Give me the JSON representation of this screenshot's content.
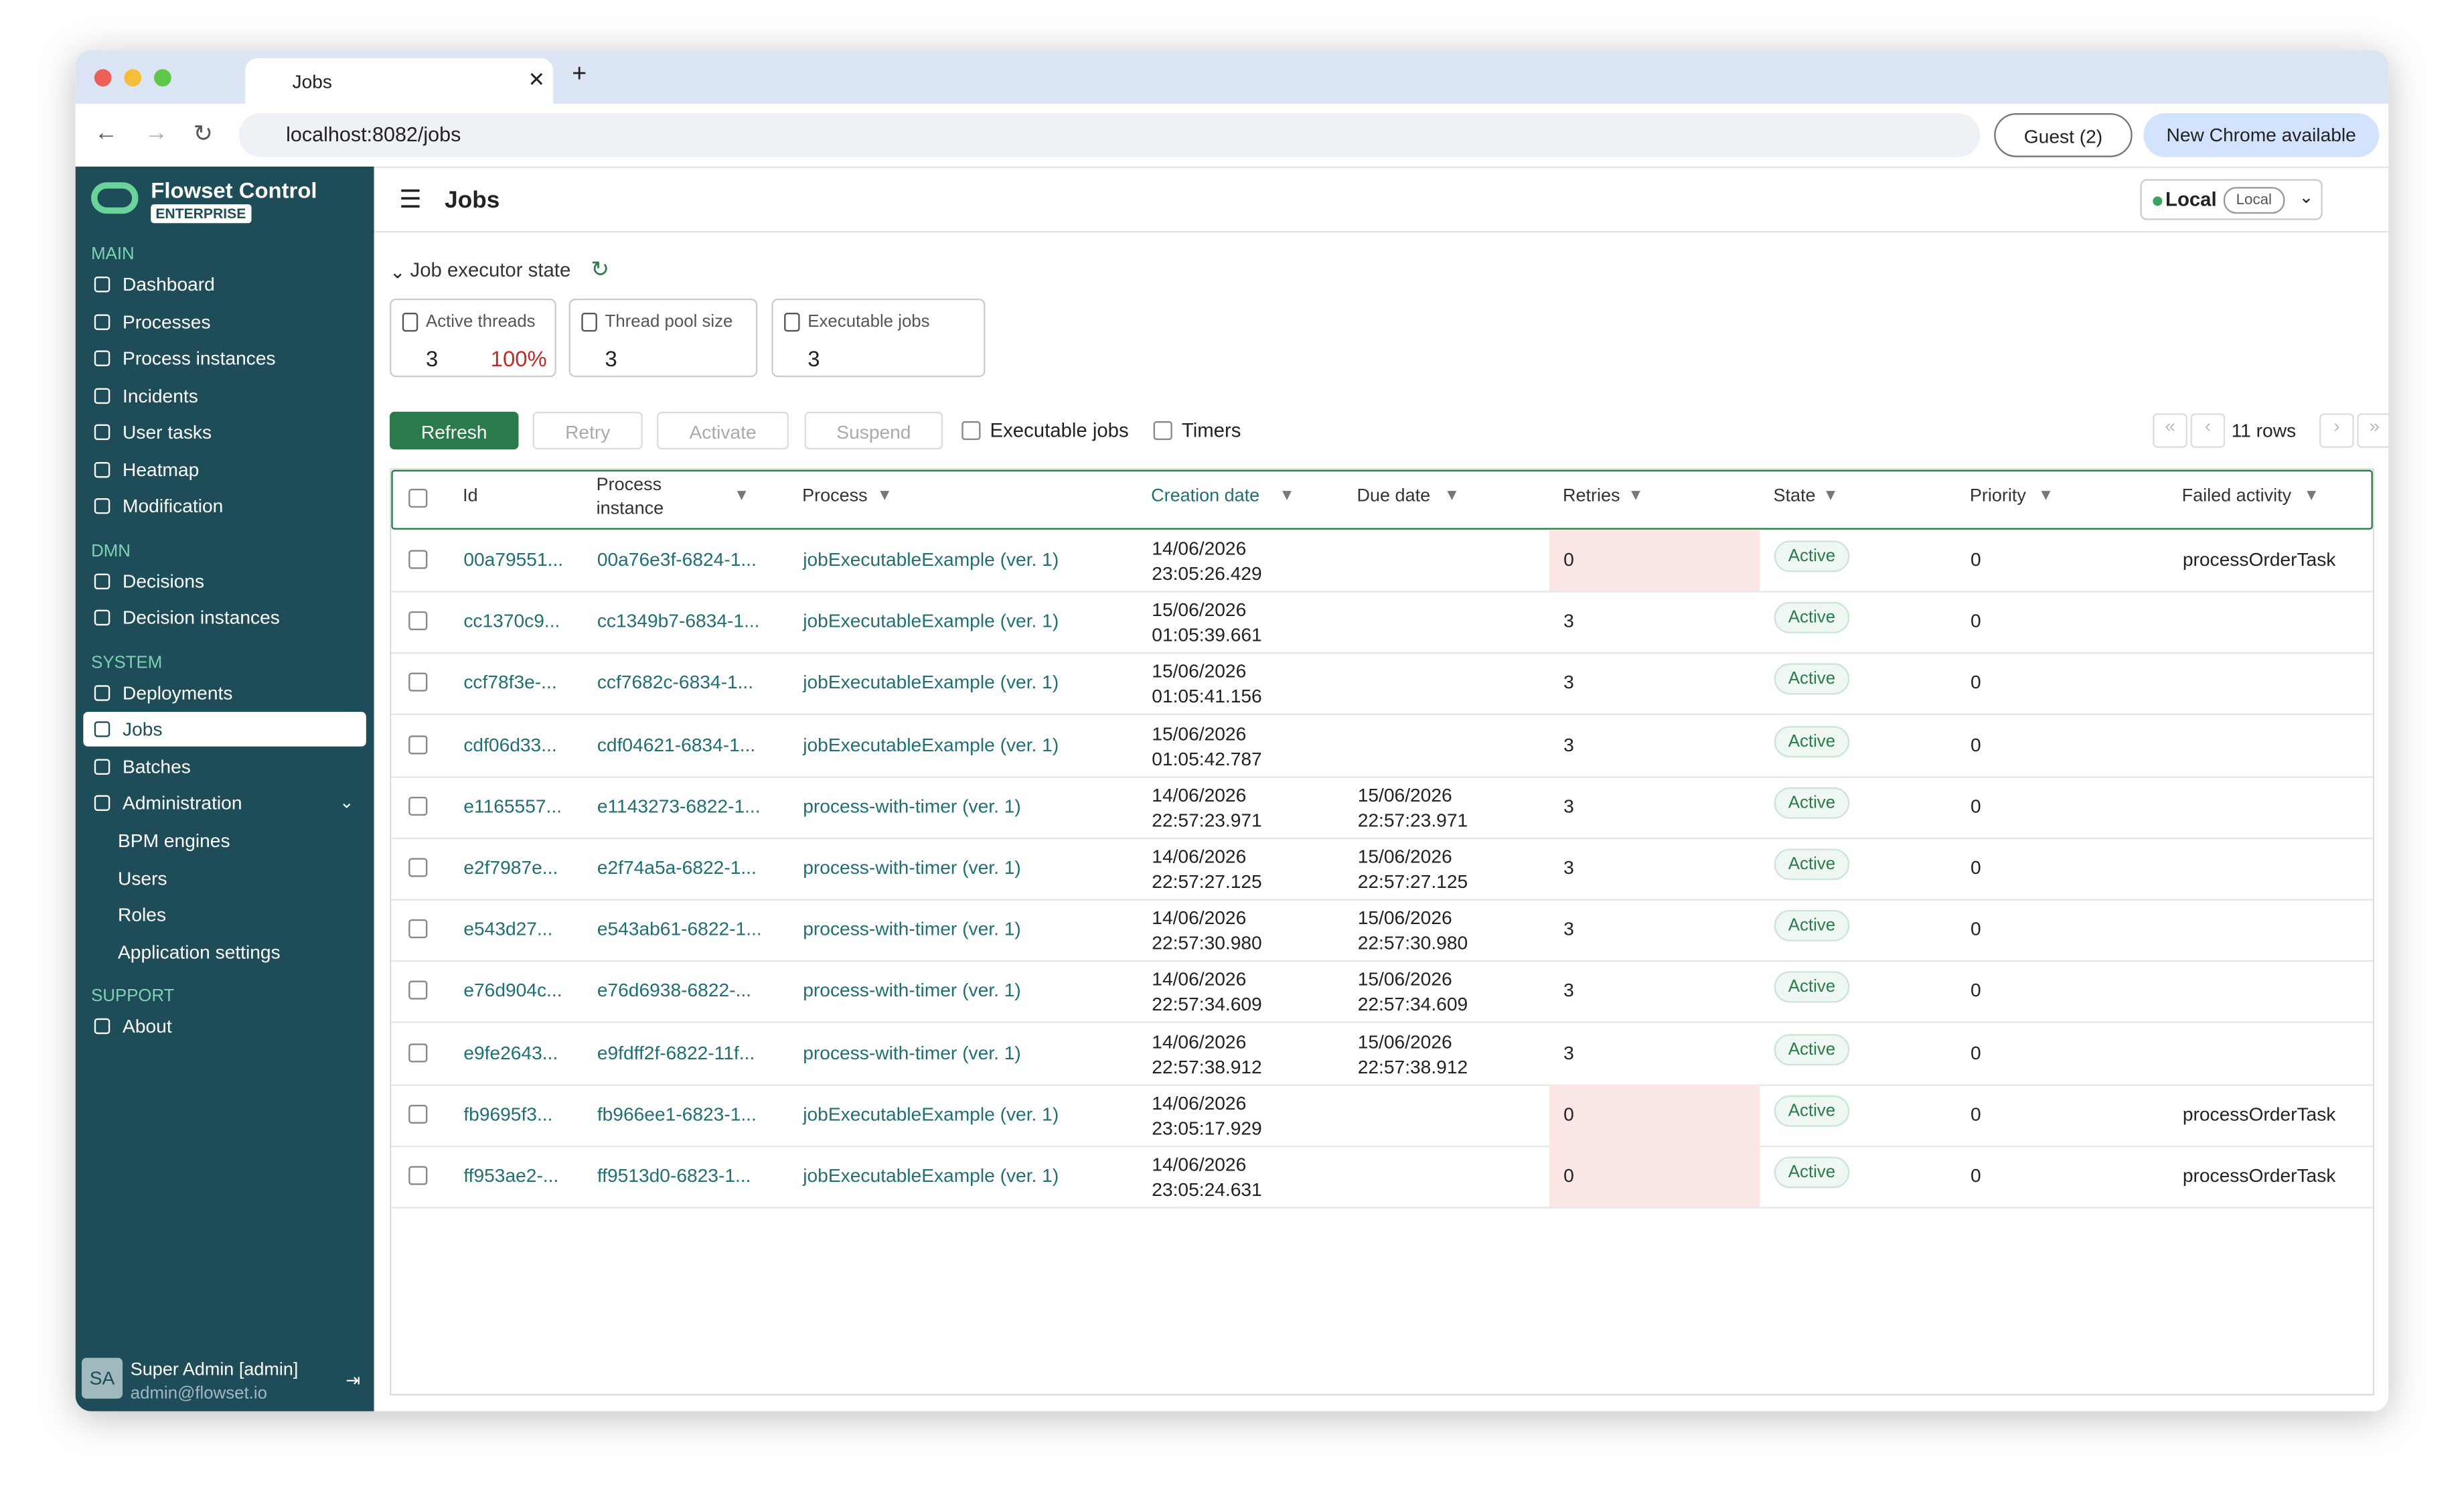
{
  "browser": {
    "tab_title": "Jobs",
    "url": "localhost:8082/jobs",
    "profile": "Guest (2)",
    "update": "New Chrome available"
  },
  "app": {
    "name": "Flowset Control",
    "edition": "ENTERPRISE"
  },
  "sidebar": {
    "sections": [
      {
        "title": "MAIN",
        "items": [
          {
            "label": "Dashboard"
          },
          {
            "label": "Processes"
          },
          {
            "label": "Process instances"
          },
          {
            "label": "Incidents"
          },
          {
            "label": "User tasks"
          },
          {
            "label": "Heatmap"
          },
          {
            "label": "Modification"
          }
        ]
      },
      {
        "title": "DMN",
        "items": [
          {
            "label": "Decisions"
          },
          {
            "label": "Decision instances"
          }
        ]
      },
      {
        "title": "SYSTEM",
        "items": [
          {
            "label": "Deployments"
          },
          {
            "label": "Jobs",
            "selected": true
          },
          {
            "label": "Batches"
          },
          {
            "label": "Administration",
            "expanded": true,
            "children": [
              "BPM engines",
              "Users",
              "Roles",
              "Application settings"
            ]
          }
        ]
      },
      {
        "title": "SUPPORT",
        "items": [
          {
            "label": "About"
          }
        ]
      }
    ]
  },
  "user": {
    "initials": "SA",
    "name": "Super Admin [admin]",
    "email": "admin@flowset.io"
  },
  "header": {
    "title": "Jobs",
    "env": "Local",
    "env_badge": "Local"
  },
  "executor": {
    "title": "Job executor state",
    "cards": [
      {
        "label": "Active threads",
        "value": "3",
        "percent": "100%"
      },
      {
        "label": "Thread pool size",
        "value": "3"
      },
      {
        "label": "Executable jobs",
        "value": "3"
      }
    ]
  },
  "toolbar": {
    "buttons": [
      "Refresh",
      "Retry",
      "Activate",
      "Suspend"
    ],
    "checkboxes": [
      "Executable jobs",
      "Timers"
    ],
    "rows_count": "11 rows"
  },
  "table": {
    "columns": [
      "Id",
      "Process instance",
      "Process",
      "Creation date",
      "Due date",
      "Retries",
      "State",
      "Priority",
      "Failed activity"
    ],
    "rows": [
      {
        "id": "00a79551...",
        "process_instance": "00a76e3f-6824-1...",
        "process": "jobExecutableExample (ver. 1)",
        "creation_date": "14/06/2026 23:05:26.429",
        "due_date": null,
        "retries": 0,
        "state": "Active",
        "priority": 0,
        "failed_activity": "processOrderTask"
      },
      {
        "id": "cc1370c9...",
        "process_instance": "cc1349b7-6834-1...",
        "process": "jobExecutableExample (ver. 1)",
        "creation_date": "15/06/2026 01:05:39.661",
        "due_date": null,
        "retries": 3,
        "state": "Active",
        "priority": 0,
        "failed_activity": null
      },
      {
        "id": "ccf78f3e-...",
        "process_instance": "ccf7682c-6834-1...",
        "process": "jobExecutableExample (ver. 1)",
        "creation_date": "15/06/2026 01:05:41.156",
        "due_date": null,
        "retries": 3,
        "state": "Active",
        "priority": 0,
        "failed_activity": null
      },
      {
        "id": "cdf06d33...",
        "process_instance": "cdf04621-6834-1...",
        "process": "jobExecutableExample (ver. 1)",
        "creation_date": "15/06/2026 01:05:42.787",
        "due_date": null,
        "retries": 3,
        "state": "Active",
        "priority": 0,
        "failed_activity": null
      },
      {
        "id": "e1165557...",
        "process_instance": "e1143273-6822-1...",
        "process": "process-with-timer (ver. 1)",
        "creation_date": "14/06/2026 22:57:23.971",
        "due_date": "15/06/2026 22:57:23.971",
        "retries": 3,
        "state": "Active",
        "priority": 0,
        "failed_activity": null
      },
      {
        "id": "e2f7987e...",
        "process_instance": "e2f74a5a-6822-1...",
        "process": "process-with-timer (ver. 1)",
        "creation_date": "14/06/2026 22:57:27.125",
        "due_date": "15/06/2026 22:57:27.125",
        "retries": 3,
        "state": "Active",
        "priority": 0,
        "failed_activity": null
      },
      {
        "id": "e543d27...",
        "process_instance": "e543ab61-6822-1...",
        "process": "process-with-timer (ver. 1)",
        "creation_date": "14/06/2026 22:57:30.980",
        "due_date": "15/06/2026 22:57:30.980",
        "retries": 3,
        "state": "Active",
        "priority": 0,
        "failed_activity": null
      },
      {
        "id": "e76d904c...",
        "process_instance": "e76d6938-6822-...",
        "process": "process-with-timer (ver. 1)",
        "creation_date": "14/06/2026 22:57:34.609",
        "due_date": "15/06/2026 22:57:34.609",
        "retries": 3,
        "state": "Active",
        "priority": 0,
        "failed_activity": null
      },
      {
        "id": "e9fe2643...",
        "process_instance": "e9fdff2f-6822-11f...",
        "process": "process-with-timer (ver. 1)",
        "creation_date": "14/06/2026 22:57:38.912",
        "due_date": "15/06/2026 22:57:38.912",
        "retries": 3,
        "state": "Active",
        "priority": 0,
        "failed_activity": null
      },
      {
        "id": "fb9695f3...",
        "process_instance": "fb966ee1-6823-1...",
        "process": "jobExecutableExample (ver. 1)",
        "creation_date": "14/06/2026 23:05:17.929",
        "due_date": null,
        "retries": 0,
        "state": "Active",
        "priority": 0,
        "failed_activity": "processOrderTask"
      },
      {
        "id": "ff953ae2-...",
        "process_instance": "ff9513d0-6823-1...",
        "process": "jobExecutableExample (ver. 1)",
        "creation_date": "14/06/2026 23:05:24.631",
        "due_date": null,
        "retries": 0,
        "state": "Active",
        "priority": 0,
        "failed_activity": "processOrderTask"
      }
    ]
  }
}
